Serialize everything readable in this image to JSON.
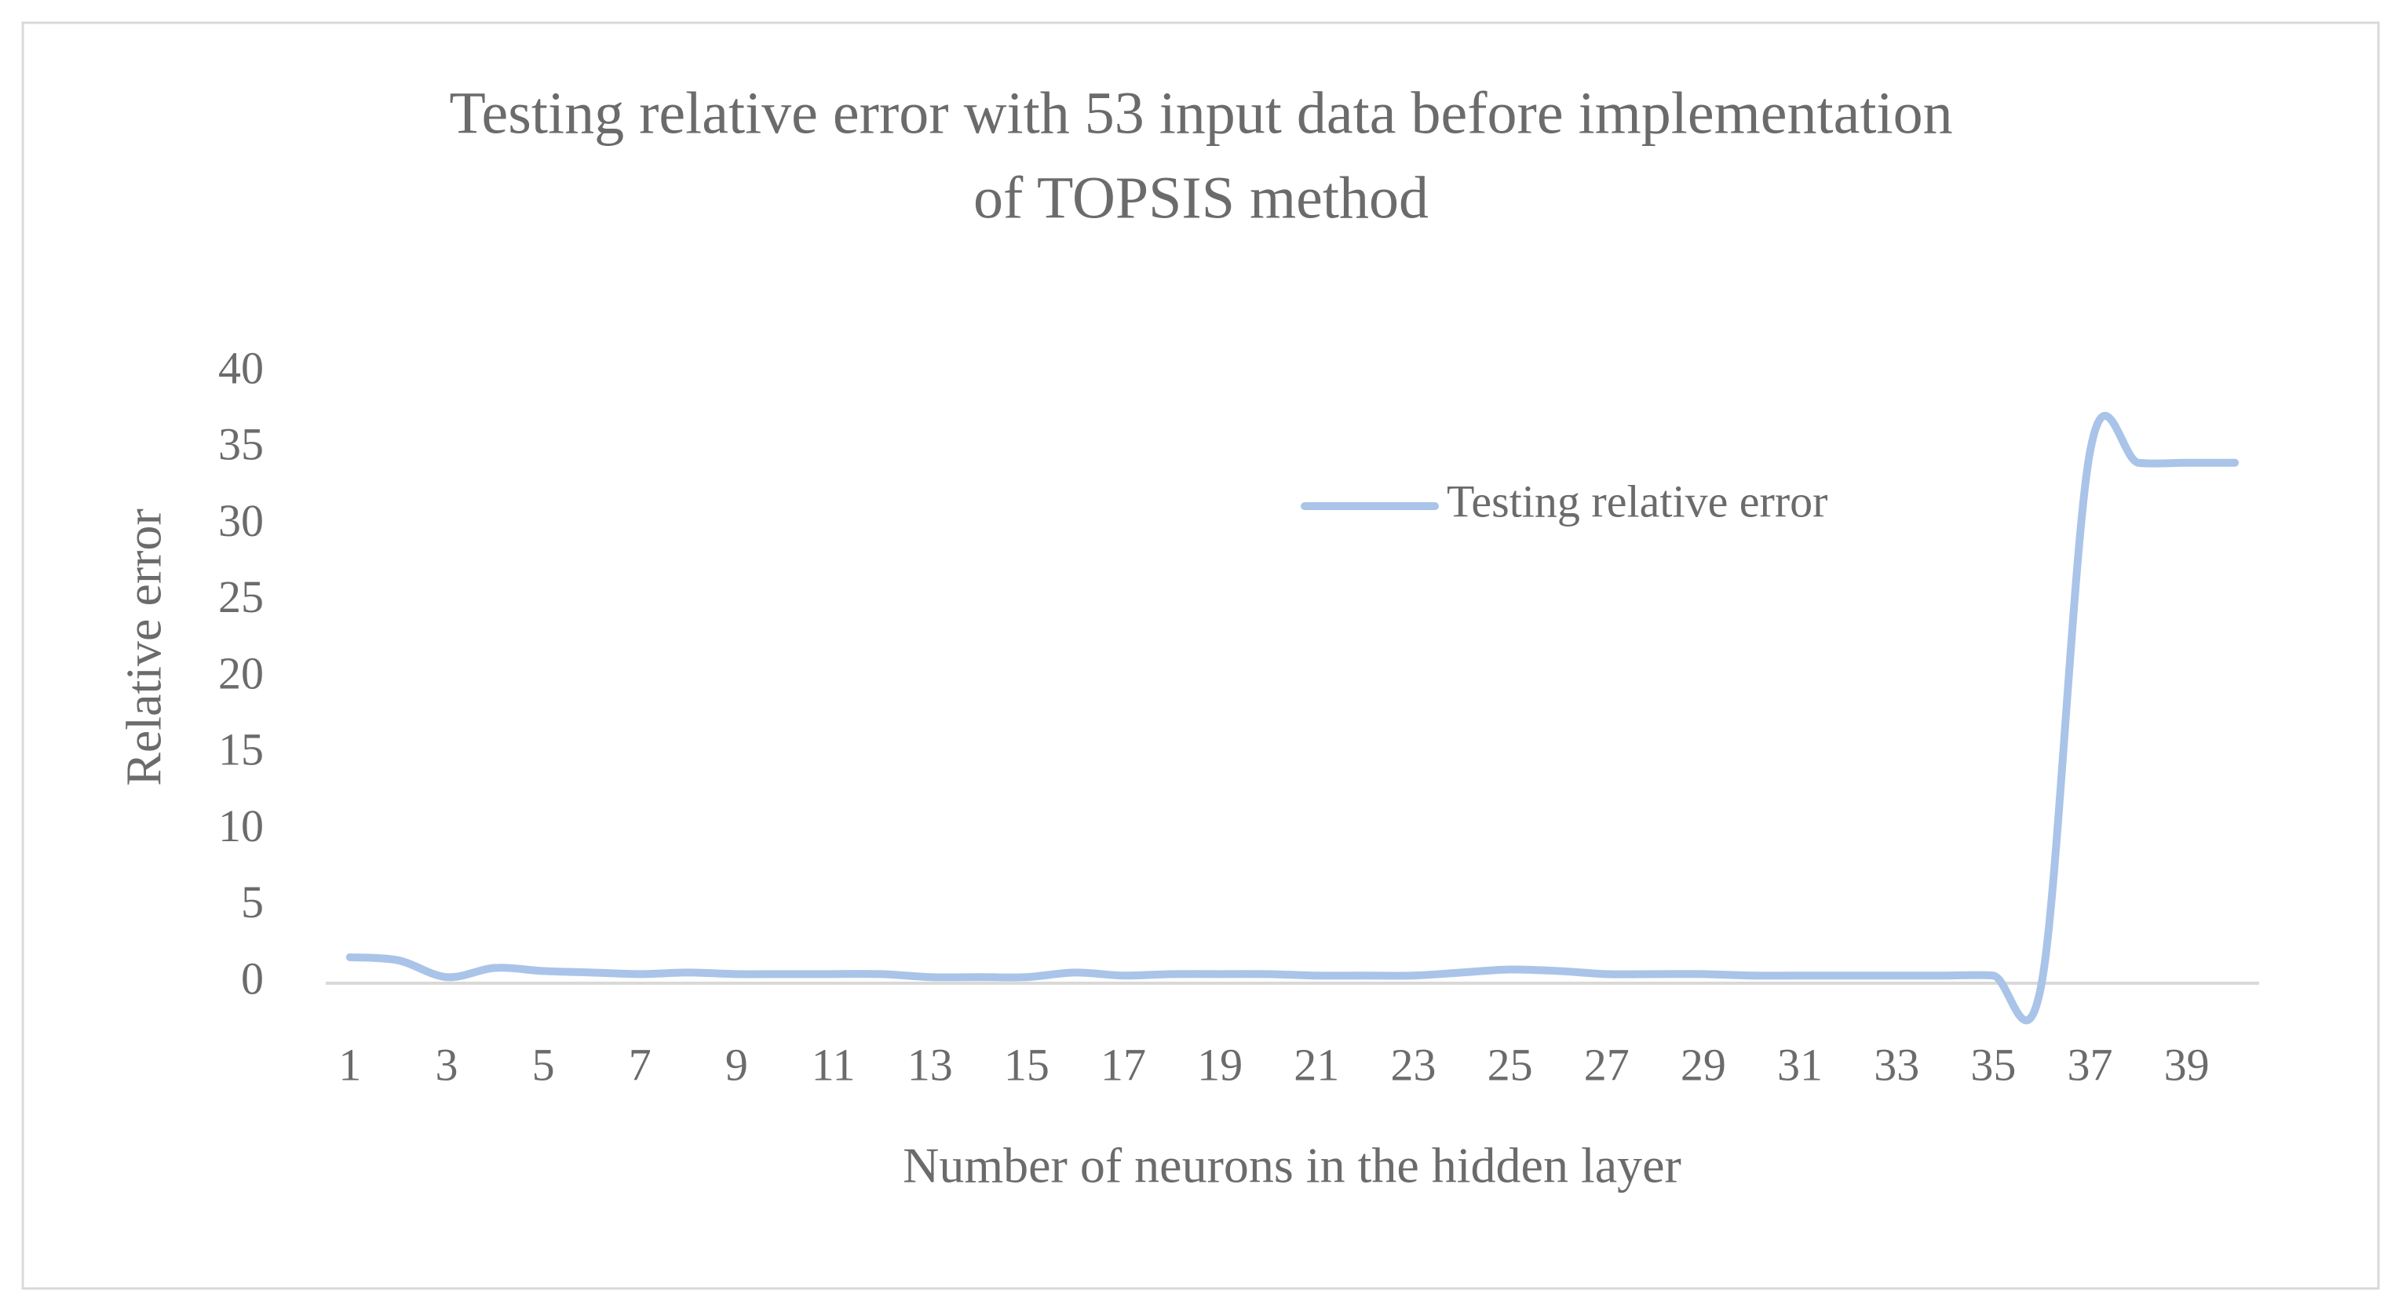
{
  "chart_data": {
    "type": "line",
    "title": [
      "Testing relative error with 53 input data before implementation",
      "of TOPSIS method"
    ],
    "x_label": "Number of neurons in the hidden layer",
    "y_label": "Relative error",
    "categories": [
      1,
      null,
      3,
      null,
      5,
      null,
      7,
      null,
      9,
      null,
      11,
      null,
      13,
      null,
      15,
      null,
      17,
      null,
      19,
      null,
      21,
      null,
      23,
      null,
      25,
      null,
      27,
      null,
      29,
      null,
      31,
      null,
      33,
      null,
      35,
      null,
      37,
      null,
      39,
      null
    ],
    "series": [
      {
        "name": "Testing relative error",
        "color": "#a9c4e8",
        "values": [
          1.7,
          1.5,
          0.4,
          1.0,
          0.8,
          0.7,
          0.6,
          0.7,
          0.6,
          0.6,
          0.6,
          0.6,
          0.4,
          0.4,
          0.4,
          0.7,
          0.5,
          0.6,
          0.6,
          0.6,
          0.5,
          0.5,
          0.5,
          0.7,
          0.9,
          0.8,
          0.6,
          0.6,
          0.6,
          0.5,
          0.5,
          0.5,
          0.5,
          0.5,
          0.5,
          0.0,
          34.8,
          34.1,
          34.1,
          34.1
        ]
      }
    ],
    "ylim": [
      0,
      40
    ],
    "yticks": [
      0,
      5,
      10,
      15,
      20,
      25,
      30,
      35,
      40
    ],
    "grid": false,
    "smooth": true,
    "legend": "upper right"
  }
}
